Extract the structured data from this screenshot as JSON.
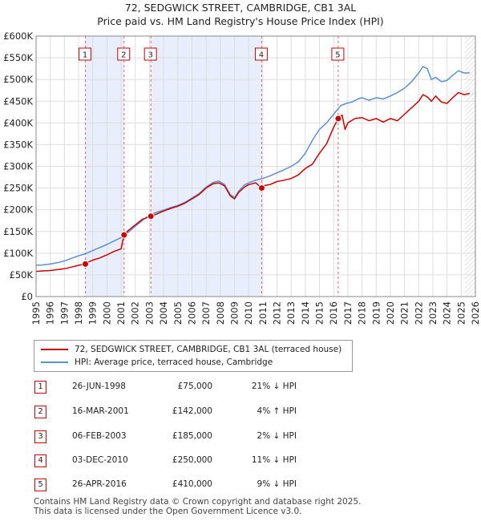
{
  "chart_data": {
    "type": "line",
    "title": "72, SEDGWICK STREET, CAMBRIDGE, CB1 3AL",
    "subtitle": "Price paid vs. HM Land Registry's House Price Index (HPI)",
    "xlim": [
      1995,
      2026
    ],
    "ylim": [
      0,
      600000
    ],
    "x_ticks": [
      "1995",
      "1996",
      "1997",
      "1998",
      "1999",
      "2000",
      "2001",
      "2002",
      "2003",
      "2004",
      "2005",
      "2006",
      "2007",
      "2008",
      "2009",
      "2010",
      "2011",
      "2012",
      "2013",
      "2014",
      "2015",
      "2016",
      "2017",
      "2018",
      "2019",
      "2020",
      "2021",
      "2022",
      "2023",
      "2024",
      "2025",
      "2026"
    ],
    "y_ticks": [
      {
        "value": 0,
        "label": "£0"
      },
      {
        "value": 50000,
        "label": "£50K"
      },
      {
        "value": 100000,
        "label": "£100K"
      },
      {
        "value": 150000,
        "label": "£150K"
      },
      {
        "value": 200000,
        "label": "£200K"
      },
      {
        "value": 250000,
        "label": "£250K"
      },
      {
        "value": 300000,
        "label": "£300K"
      },
      {
        "value": 350000,
        "label": "£350K"
      },
      {
        "value": 400000,
        "label": "£400K"
      },
      {
        "value": 450000,
        "label": "£450K"
      },
      {
        "value": 500000,
        "label": "£500K"
      },
      {
        "value": 550000,
        "label": "£550K"
      },
      {
        "value": 600000,
        "label": "£600K"
      }
    ],
    "grid": true,
    "forecast_start": 2025.25,
    "series": [
      {
        "name": "72, SEDGWICK STREET, CAMBRIDGE, CB1 3AL (terraced house)",
        "color": "#cc0000",
        "x": [
          1995.0,
          1995.5,
          1996.0,
          1996.5,
          1997.0,
          1997.5,
          1998.0,
          1998.48,
          1998.6,
          1999.0,
          1999.5,
          2000.0,
          2000.5,
          2001.0,
          2001.2,
          2001.5,
          2002.0,
          2002.5,
          2003.1,
          2003.5,
          2004.0,
          2004.5,
          2005.0,
          2005.5,
          2006.0,
          2006.5,
          2007.0,
          2007.5,
          2007.9,
          2008.3,
          2008.7,
          2009.0,
          2009.3,
          2009.7,
          2010.0,
          2010.5,
          2010.92,
          2011.0,
          2011.5,
          2012.0,
          2012.5,
          2013.0,
          2013.5,
          2014.0,
          2014.5,
          2015.0,
          2015.5,
          2016.0,
          2016.32,
          2016.6,
          2016.8,
          2017.0,
          2017.5,
          2018.0,
          2018.5,
          2019.0,
          2019.5,
          2020.0,
          2020.5,
          2021.0,
          2021.5,
          2022.0,
          2022.3,
          2022.6,
          2022.9,
          2023.2,
          2023.6,
          2024.0,
          2024.4,
          2024.8,
          2025.2,
          2025.6
        ],
        "values": [
          58000,
          59000,
          60000,
          62000,
          64000,
          68000,
          72000,
          75000,
          78000,
          84000,
          89000,
          96000,
          104000,
          110000,
          142000,
          152000,
          165000,
          178000,
          185000,
          190000,
          197000,
          203000,
          208000,
          215000,
          225000,
          235000,
          250000,
          260000,
          262000,
          255000,
          232000,
          225000,
          240000,
          252000,
          258000,
          262000,
          250000,
          255000,
          258000,
          265000,
          268000,
          272000,
          280000,
          295000,
          305000,
          330000,
          352000,
          390000,
          410000,
          418000,
          385000,
          400000,
          410000,
          412000,
          405000,
          410000,
          402000,
          410000,
          405000,
          420000,
          435000,
          450000,
          465000,
          460000,
          450000,
          462000,
          448000,
          445000,
          458000,
          470000,
          465000,
          468000
        ]
      },
      {
        "name": "HPI: Average price, terraced house, Cambridge",
        "color": "#5b8fd4",
        "x": [
          1995.0,
          1995.5,
          1996.0,
          1996.5,
          1997.0,
          1997.5,
          1998.0,
          1998.5,
          1999.0,
          1999.5,
          2000.0,
          2000.5,
          2001.0,
          2001.5,
          2002.0,
          2002.5,
          2003.0,
          2003.5,
          2004.0,
          2004.5,
          2005.0,
          2005.5,
          2006.0,
          2006.5,
          2007.0,
          2007.5,
          2007.9,
          2008.3,
          2008.7,
          2009.0,
          2009.3,
          2009.7,
          2010.0,
          2010.5,
          2011.0,
          2011.5,
          2012.0,
          2012.5,
          2013.0,
          2013.5,
          2014.0,
          2014.5,
          2015.0,
          2015.5,
          2016.0,
          2016.5,
          2016.9,
          2017.3,
          2017.7,
          2018.0,
          2018.5,
          2019.0,
          2019.5,
          2020.0,
          2020.5,
          2021.0,
          2021.5,
          2022.0,
          2022.3,
          2022.6,
          2022.9,
          2023.2,
          2023.6,
          2024.0,
          2024.4,
          2024.8,
          2025.2,
          2025.6
        ],
        "values": [
          72000,
          73000,
          75000,
          78000,
          82000,
          88000,
          94000,
          99000,
          106000,
          113000,
          120000,
          128000,
          136000,
          148000,
          162000,
          175000,
          188000,
          194000,
          199000,
          205000,
          210000,
          217000,
          227000,
          237000,
          252000,
          263000,
          266000,
          258000,
          235000,
          228000,
          243000,
          257000,
          262000,
          268000,
          272000,
          278000,
          285000,
          292000,
          300000,
          310000,
          330000,
          360000,
          385000,
          400000,
          420000,
          440000,
          445000,
          448000,
          455000,
          458000,
          452000,
          458000,
          455000,
          462000,
          470000,
          480000,
          495000,
          515000,
          530000,
          525000,
          500000,
          505000,
          495000,
          498000,
          510000,
          520000,
          515000,
          515000
        ]
      }
    ],
    "sales": [
      {
        "id": "1",
        "x": 1998.48,
        "value": 75000
      },
      {
        "id": "2",
        "x": 2001.21,
        "value": 142000
      },
      {
        "id": "3",
        "x": 2003.1,
        "value": 185000
      },
      {
        "id": "4",
        "x": 2010.92,
        "value": 250000
      },
      {
        "id": "5",
        "x": 2016.32,
        "value": 410000
      }
    ]
  },
  "legend": {
    "property": "72, SEDGWICK STREET, CAMBRIDGE, CB1 3AL (terraced house)",
    "hpi": "HPI: Average price, terraced house, Cambridge",
    "property_color": "#cc0000",
    "hpi_color": "#5b8fd4"
  },
  "transactions": [
    {
      "num": "1",
      "date": "26-JUN-1998",
      "price": "£75,000",
      "delta": "21% ↓ HPI"
    },
    {
      "num": "2",
      "date": "16-MAR-2001",
      "price": "£142,000",
      "delta": "4% ↑ HPI"
    },
    {
      "num": "3",
      "date": "06-FEB-2003",
      "price": "£185,000",
      "delta": "2% ↓ HPI"
    },
    {
      "num": "4",
      "date": "03-DEC-2010",
      "price": "£250,000",
      "delta": "11% ↓ HPI"
    },
    {
      "num": "5",
      "date": "26-APR-2016",
      "price": "£410,000",
      "delta": "9% ↓ HPI"
    }
  ],
  "footer": {
    "line1": "Contains HM Land Registry data © Crown copyright and database right 2025.",
    "line2": "This data is licensed under the Open Government Licence v3.0."
  }
}
